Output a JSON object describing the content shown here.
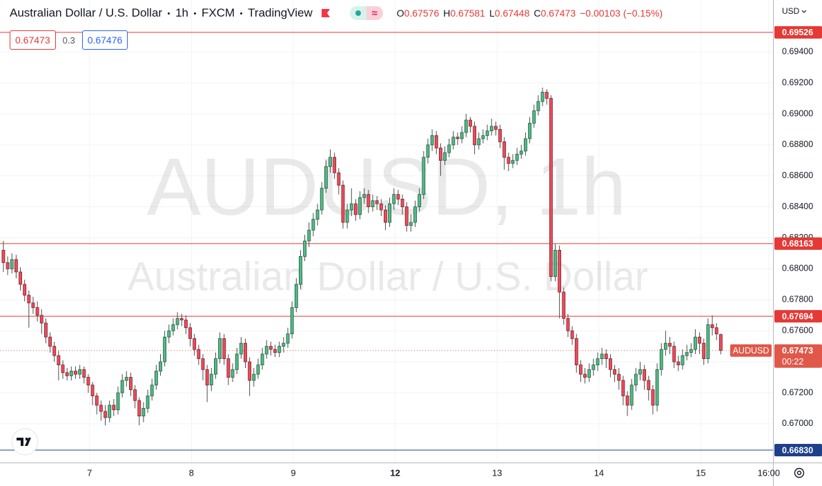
{
  "header": {
    "title": "Australian Dollar / U.S. Dollar",
    "interval": "1h",
    "exchange": "FXCM",
    "source": "TradingView",
    "ohlc_labels": [
      "O",
      "H",
      "L",
      "C"
    ],
    "change": "−0.00103",
    "change_pct": "(−0.15%)"
  },
  "trade": {
    "sell": 0.67473,
    "spread": 0.3,
    "buy": 0.67476
  },
  "currency": "USD",
  "watermark": {
    "symbol": "AUDUSD, 1h",
    "name": "Australian Dollar / U.S. Dollar"
  },
  "chart_data": {
    "type": "candlestick",
    "up_color": "#53b987",
    "down_color": "#eb4d5c",
    "up_border": "#1f5e3f",
    "down_border": "#7d1f27",
    "wick_color": "#4a4a4a",
    "grid": true,
    "ylim": [
      0.6675,
      0.69735
    ],
    "yticks": [
      {
        "value": 0.67,
        "label": "0.67000"
      },
      {
        "value": 0.672,
        "label": "0.67200"
      },
      {
        "value": 0.674,
        "label": "0.67400"
      },
      {
        "value": 0.676,
        "label": "0.67600"
      },
      {
        "value": 0.678,
        "label": "0.67800"
      },
      {
        "value": 0.68,
        "label": "0.68000"
      },
      {
        "value": 0.682,
        "label": "0.68200"
      },
      {
        "value": 0.684,
        "label": "0.68400"
      },
      {
        "value": 0.686,
        "label": "0.68600"
      },
      {
        "value": 0.688,
        "label": "0.68800"
      },
      {
        "value": 0.69,
        "label": "0.69000"
      },
      {
        "value": 0.692,
        "label": "0.69200"
      },
      {
        "value": 0.694,
        "label": "0.69400"
      }
    ],
    "xlim": [
      -0.8,
      181.3
    ],
    "xticks": [
      {
        "value": 20.3,
        "label": "7"
      },
      {
        "value": 44.3,
        "label": "8"
      },
      {
        "value": 68.3,
        "label": "9"
      },
      {
        "value": 92.3,
        "label": "12"
      },
      {
        "value": 116.3,
        "label": "13"
      },
      {
        "value": 140.3,
        "label": "14"
      },
      {
        "value": 164.3,
        "label": "15"
      },
      {
        "value": 180.3,
        "label": "16:00"
      }
    ],
    "hlines": [
      {
        "value": 0.69526,
        "color": "#e53935"
      },
      {
        "value": 0.68163,
        "color": "#e53935"
      },
      {
        "value": 0.67694,
        "color": "#e53935"
      },
      {
        "value": 0.6683,
        "label": "0.66830",
        "color": "#1e3f8a"
      }
    ],
    "current": {
      "value": 0.67473,
      "symbol": "AUDUSD",
      "countdown": "00:22",
      "color": "#e0584a"
    },
    "candles": [
      [
        0.6812,
        0.6818,
        0.6798,
        0.6804
      ],
      [
        0.6804,
        0.6808,
        0.6796,
        0.68
      ],
      [
        0.68,
        0.681,
        0.6797,
        0.6806
      ],
      [
        0.6806,
        0.6809,
        0.6794,
        0.6798
      ],
      [
        0.6798,
        0.6801,
        0.6786,
        0.679
      ],
      [
        0.679,
        0.6793,
        0.6779,
        0.6783
      ],
      [
        0.6783,
        0.6786,
        0.6762,
        0.6778
      ],
      [
        0.6778,
        0.6782,
        0.6771,
        0.6775
      ],
      [
        0.6775,
        0.6779,
        0.6766,
        0.677
      ],
      [
        0.677,
        0.6774,
        0.6758,
        0.6765
      ],
      [
        0.6765,
        0.6768,
        0.6752,
        0.6756
      ],
      [
        0.6756,
        0.6759,
        0.6746,
        0.675
      ],
      [
        0.675,
        0.6753,
        0.674,
        0.6744
      ],
      [
        0.6744,
        0.6747,
        0.6728,
        0.6738
      ],
      [
        0.6738,
        0.6741,
        0.6729,
        0.6733
      ],
      [
        0.6733,
        0.6736,
        0.6728,
        0.6731
      ],
      [
        0.6731,
        0.6737,
        0.6728,
        0.6734
      ],
      [
        0.6734,
        0.6737,
        0.6729,
        0.6732
      ],
      [
        0.6732,
        0.6738,
        0.6729,
        0.6735
      ],
      [
        0.6735,
        0.6737,
        0.6726,
        0.673
      ],
      [
        0.673,
        0.6732,
        0.672,
        0.6725
      ],
      [
        0.6725,
        0.6727,
        0.6712,
        0.6718
      ],
      [
        0.6718,
        0.672,
        0.6706,
        0.6712
      ],
      [
        0.6712,
        0.6715,
        0.6702,
        0.6708
      ],
      [
        0.6708,
        0.6712,
        0.6699,
        0.6704
      ],
      [
        0.6704,
        0.6715,
        0.6701,
        0.6712
      ],
      [
        0.6712,
        0.6716,
        0.6705,
        0.6709
      ],
      [
        0.6709,
        0.6724,
        0.6706,
        0.672
      ],
      [
        0.672,
        0.6732,
        0.6717,
        0.6728
      ],
      [
        0.6728,
        0.6734,
        0.6724,
        0.673
      ],
      [
        0.673,
        0.6733,
        0.6718,
        0.6722
      ],
      [
        0.6722,
        0.6725,
        0.671,
        0.6715
      ],
      [
        0.6715,
        0.6717,
        0.6699,
        0.6705
      ],
      [
        0.6705,
        0.6714,
        0.6701,
        0.671
      ],
      [
        0.671,
        0.6722,
        0.6707,
        0.6718
      ],
      [
        0.6718,
        0.6729,
        0.6715,
        0.6725
      ],
      [
        0.6725,
        0.6738,
        0.6722,
        0.6734
      ],
      [
        0.6734,
        0.6745,
        0.6731,
        0.674
      ],
      [
        0.674,
        0.676,
        0.6737,
        0.6756
      ],
      [
        0.6756,
        0.6764,
        0.6752,
        0.676
      ],
      [
        0.676,
        0.6768,
        0.6757,
        0.6764
      ],
      [
        0.6764,
        0.6772,
        0.6761,
        0.6768
      ],
      [
        0.6768,
        0.6771,
        0.6763,
        0.6767
      ],
      [
        0.6767,
        0.677,
        0.6758,
        0.6762
      ],
      [
        0.6762,
        0.6765,
        0.675,
        0.6755
      ],
      [
        0.6755,
        0.6758,
        0.6744,
        0.6748
      ],
      [
        0.6748,
        0.6751,
        0.6738,
        0.6742
      ],
      [
        0.6742,
        0.6745,
        0.6728,
        0.6735
      ],
      [
        0.6735,
        0.6738,
        0.6714,
        0.6725
      ],
      [
        0.6725,
        0.6736,
        0.6721,
        0.6732
      ],
      [
        0.6732,
        0.6746,
        0.6729,
        0.6742
      ],
      [
        0.6742,
        0.6759,
        0.6739,
        0.6755
      ],
      [
        0.6755,
        0.6758,
        0.6738,
        0.6742
      ],
      [
        0.6742,
        0.6745,
        0.6725,
        0.673
      ],
      [
        0.673,
        0.6739,
        0.6727,
        0.6735
      ],
      [
        0.6735,
        0.6749,
        0.6732,
        0.6745
      ],
      [
        0.6745,
        0.6756,
        0.6742,
        0.6752
      ],
      [
        0.6752,
        0.6755,
        0.6736,
        0.674
      ],
      [
        0.674,
        0.6743,
        0.6718,
        0.6728
      ],
      [
        0.6728,
        0.6736,
        0.6724,
        0.6732
      ],
      [
        0.6732,
        0.6742,
        0.6729,
        0.6738
      ],
      [
        0.6738,
        0.6749,
        0.6735,
        0.6745
      ],
      [
        0.6745,
        0.6754,
        0.6742,
        0.675
      ],
      [
        0.675,
        0.6753,
        0.6744,
        0.6748
      ],
      [
        0.6748,
        0.6751,
        0.6743,
        0.6746
      ],
      [
        0.6746,
        0.6753,
        0.6743,
        0.675
      ],
      [
        0.675,
        0.6756,
        0.6746,
        0.6752
      ],
      [
        0.6752,
        0.6762,
        0.6749,
        0.6758
      ],
      [
        0.6758,
        0.6779,
        0.6755,
        0.6775
      ],
      [
        0.6775,
        0.6794,
        0.6772,
        0.679
      ],
      [
        0.679,
        0.6812,
        0.6787,
        0.6808
      ],
      [
        0.6808,
        0.6822,
        0.6805,
        0.6818
      ],
      [
        0.6818,
        0.683,
        0.6814,
        0.6825
      ],
      [
        0.6825,
        0.6836,
        0.6821,
        0.6832
      ],
      [
        0.6832,
        0.6842,
        0.6828,
        0.6838
      ],
      [
        0.6838,
        0.6856,
        0.6835,
        0.6852
      ],
      [
        0.6852,
        0.687,
        0.6849,
        0.6866
      ],
      [
        0.6866,
        0.6877,
        0.6862,
        0.6872
      ],
      [
        0.6872,
        0.6875,
        0.6858,
        0.6862
      ],
      [
        0.6862,
        0.6865,
        0.6848,
        0.6854
      ],
      [
        0.6854,
        0.6857,
        0.6826,
        0.683
      ],
      [
        0.683,
        0.6842,
        0.6826,
        0.6838
      ],
      [
        0.6838,
        0.6852,
        0.6834,
        0.6842
      ],
      [
        0.6842,
        0.6845,
        0.6831,
        0.6835
      ],
      [
        0.6835,
        0.685,
        0.6832,
        0.6846
      ],
      [
        0.6846,
        0.6852,
        0.6842,
        0.6848
      ],
      [
        0.6848,
        0.6851,
        0.6836,
        0.684
      ],
      [
        0.684,
        0.6848,
        0.6837,
        0.6844
      ],
      [
        0.6844,
        0.6847,
        0.6838,
        0.6842
      ],
      [
        0.6842,
        0.6845,
        0.6834,
        0.6838
      ],
      [
        0.6838,
        0.6841,
        0.6825,
        0.683
      ],
      [
        0.683,
        0.6846,
        0.6827,
        0.6842
      ],
      [
        0.6842,
        0.6852,
        0.6838,
        0.6848
      ],
      [
        0.6848,
        0.6851,
        0.6841,
        0.6845
      ],
      [
        0.6845,
        0.6848,
        0.6835,
        0.684
      ],
      [
        0.684,
        0.6843,
        0.6824,
        0.6828
      ],
      [
        0.6828,
        0.6835,
        0.6824,
        0.683
      ],
      [
        0.683,
        0.6844,
        0.6827,
        0.684
      ],
      [
        0.684,
        0.6852,
        0.6837,
        0.6848
      ],
      [
        0.6848,
        0.6876,
        0.6845,
        0.6872
      ],
      [
        0.6872,
        0.6884,
        0.6868,
        0.688
      ],
      [
        0.688,
        0.689,
        0.6876,
        0.6886
      ],
      [
        0.6886,
        0.6889,
        0.6874,
        0.6878
      ],
      [
        0.6878,
        0.6881,
        0.686,
        0.687
      ],
      [
        0.687,
        0.6879,
        0.6867,
        0.6875
      ],
      [
        0.6875,
        0.6884,
        0.6872,
        0.688
      ],
      [
        0.688,
        0.6889,
        0.6877,
        0.6885
      ],
      [
        0.6885,
        0.6888,
        0.688,
        0.6884
      ],
      [
        0.6884,
        0.6892,
        0.6881,
        0.6888
      ],
      [
        0.6888,
        0.69,
        0.6885,
        0.6896
      ],
      [
        0.6896,
        0.6898,
        0.6888,
        0.6892
      ],
      [
        0.6892,
        0.6895,
        0.6874,
        0.688
      ],
      [
        0.688,
        0.6888,
        0.6877,
        0.6884
      ],
      [
        0.6884,
        0.689,
        0.6881,
        0.6886
      ],
      [
        0.6886,
        0.6893,
        0.6883,
        0.6889
      ],
      [
        0.6889,
        0.6897,
        0.6886,
        0.6892
      ],
      [
        0.6892,
        0.6895,
        0.6886,
        0.689
      ],
      [
        0.689,
        0.6893,
        0.6878,
        0.6882
      ],
      [
        0.6882,
        0.6885,
        0.6864,
        0.6872
      ],
      [
        0.6872,
        0.6875,
        0.6863,
        0.6868
      ],
      [
        0.6868,
        0.6874,
        0.6865,
        0.687
      ],
      [
        0.687,
        0.6878,
        0.6867,
        0.6874
      ],
      [
        0.6874,
        0.688,
        0.6871,
        0.6876
      ],
      [
        0.6876,
        0.6888,
        0.6873,
        0.6884
      ],
      [
        0.6884,
        0.6898,
        0.6881,
        0.6894
      ],
      [
        0.6894,
        0.6906,
        0.6891,
        0.6902
      ],
      [
        0.6902,
        0.6912,
        0.6899,
        0.6908
      ],
      [
        0.6908,
        0.6917,
        0.6905,
        0.6914
      ],
      [
        0.6914,
        0.6916,
        0.6906,
        0.691
      ],
      [
        0.691,
        0.6912,
        0.6792,
        0.6795
      ],
      [
        0.6795,
        0.6816,
        0.6792,
        0.6812
      ],
      [
        0.6812,
        0.6815,
        0.6768,
        0.6785
      ],
      [
        0.6785,
        0.6788,
        0.6764,
        0.6768
      ],
      [
        0.6768,
        0.6771,
        0.6756,
        0.676
      ],
      [
        0.676,
        0.6763,
        0.6751,
        0.6755
      ],
      [
        0.6755,
        0.6758,
        0.6733,
        0.6738
      ],
      [
        0.6738,
        0.6741,
        0.6727,
        0.6732
      ],
      [
        0.6732,
        0.6736,
        0.6726,
        0.673
      ],
      [
        0.673,
        0.6739,
        0.6727,
        0.6735
      ],
      [
        0.6735,
        0.6742,
        0.6731,
        0.6738
      ],
      [
        0.6738,
        0.6746,
        0.6734,
        0.6742
      ],
      [
        0.6742,
        0.6749,
        0.6738,
        0.6745
      ],
      [
        0.6745,
        0.6748,
        0.6736,
        0.6742
      ],
      [
        0.6742,
        0.6745,
        0.673,
        0.6735
      ],
      [
        0.6735,
        0.6738,
        0.6727,
        0.6732
      ],
      [
        0.6732,
        0.6736,
        0.6722,
        0.6728
      ],
      [
        0.6728,
        0.6731,
        0.6712,
        0.6718
      ],
      [
        0.6718,
        0.6721,
        0.6705,
        0.6712
      ],
      [
        0.6712,
        0.6729,
        0.6709,
        0.6725
      ],
      [
        0.6725,
        0.6736,
        0.6721,
        0.6732
      ],
      [
        0.6732,
        0.674,
        0.6728,
        0.6735
      ],
      [
        0.6735,
        0.6738,
        0.6722,
        0.6728
      ],
      [
        0.6728,
        0.6731,
        0.6715,
        0.6722
      ],
      [
        0.6722,
        0.6725,
        0.6706,
        0.6712
      ],
      [
        0.6712,
        0.6739,
        0.6708,
        0.6735
      ],
      [
        0.6735,
        0.6752,
        0.6731,
        0.6748
      ],
      [
        0.6748,
        0.676,
        0.6744,
        0.6752
      ],
      [
        0.6752,
        0.6756,
        0.6745,
        0.675
      ],
      [
        0.675,
        0.6753,
        0.6736,
        0.674
      ],
      [
        0.674,
        0.6744,
        0.6734,
        0.6738
      ],
      [
        0.6738,
        0.6748,
        0.6735,
        0.6744
      ],
      [
        0.6744,
        0.6751,
        0.6741,
        0.6746
      ],
      [
        0.6746,
        0.6752,
        0.6743,
        0.6748
      ],
      [
        0.6748,
        0.6761,
        0.6745,
        0.6756
      ],
      [
        0.6756,
        0.6759,
        0.6745,
        0.6752
      ],
      [
        0.6752,
        0.6755,
        0.6738,
        0.6742
      ],
      [
        0.6742,
        0.6768,
        0.6739,
        0.6764
      ],
      [
        0.6764,
        0.677,
        0.6757,
        0.6762
      ],
      [
        0.6762,
        0.6765,
        0.6754,
        0.6758
      ],
      [
        0.67576,
        0.67581,
        0.67448,
        0.67473
      ]
    ]
  }
}
